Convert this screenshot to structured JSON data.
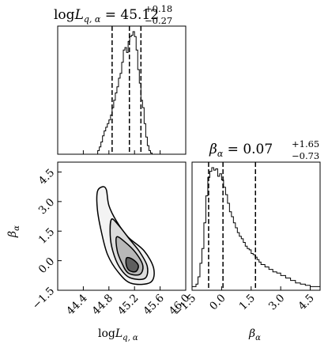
{
  "chart_data": [
    {
      "type": "histogram",
      "panel": "marginal-logL",
      "title": {
        "base": "log",
        "var": "L",
        "sub": "q, α",
        "eq": " = 45.12",
        "sup": "+0.18",
        "subscript": "−0.27"
      },
      "xlim": [
        44.0,
        46.0
      ],
      "quantiles": [
        44.85,
        45.12,
        45.3
      ],
      "bins": [
        44.6,
        44.625,
        44.65,
        44.675,
        44.7,
        44.725,
        44.75,
        44.775,
        44.8,
        44.825,
        44.85,
        44.875,
        44.9,
        44.925,
        44.95,
        44.975,
        45.0,
        45.025,
        45.05,
        45.075,
        45.1,
        45.125,
        45.15,
        45.175,
        45.2,
        45.225,
        45.25,
        45.275,
        45.3,
        45.325,
        45.35,
        45.375,
        45.4,
        45.425,
        45.45,
        45.475,
        45.5
      ],
      "counts": [
        0.0,
        0.03,
        0.06,
        0.1,
        0.15,
        0.19,
        0.22,
        0.25,
        0.28,
        0.32,
        0.38,
        0.44,
        0.5,
        0.55,
        0.62,
        0.66,
        0.75,
        0.85,
        0.87,
        0.83,
        0.92,
        0.96,
        0.97,
        1.0,
        0.96,
        0.85,
        0.69,
        0.58,
        0.44,
        0.38,
        0.25,
        0.14,
        0.07,
        0.03,
        0.01,
        0.0
      ]
    },
    {
      "type": "histogram",
      "panel": "marginal-beta",
      "title": {
        "var": "β",
        "sub": "α",
        "eq": " = 0.07",
        "sup": "+1.65",
        "subscript": "−0.73"
      },
      "xlim": [
        -1.5,
        5.0
      ],
      "xlabel": {
        "var": "β",
        "sub": "α"
      },
      "xticks": [
        "−1.5",
        "0.0",
        "1.5",
        "3.0",
        "4.5"
      ],
      "xtick_values": [
        -1.5,
        0.0,
        1.5,
        3.0,
        4.5
      ],
      "quantiles": [
        -0.66,
        0.07,
        1.72
      ],
      "bins": [
        -1.5,
        -1.4,
        -1.3,
        -1.2,
        -1.1,
        -1.0,
        -0.9,
        -0.8,
        -0.7,
        -0.6,
        -0.5,
        -0.4,
        -0.3,
        -0.2,
        -0.1,
        0.0,
        0.1,
        0.2,
        0.3,
        0.4,
        0.5,
        0.6,
        0.7,
        0.8,
        0.9,
        1.0,
        1.1,
        1.2,
        1.3,
        1.4,
        1.5,
        1.6,
        1.7,
        1.8,
        1.9,
        2.0,
        2.2,
        2.4,
        2.6,
        2.8,
        3.0,
        3.25,
        3.5,
        3.75,
        4.0,
        4.25,
        4.5,
        5.0
      ],
      "counts": [
        0.03,
        0.03,
        0.05,
        0.11,
        0.22,
        0.34,
        0.55,
        0.77,
        0.92,
        0.97,
        1.0,
        0.98,
        0.99,
        0.93,
        0.95,
        0.9,
        0.84,
        0.78,
        0.71,
        0.64,
        0.6,
        0.55,
        0.51,
        0.47,
        0.44,
        0.42,
        0.39,
        0.36,
        0.34,
        0.33,
        0.3,
        0.29,
        0.27,
        0.25,
        0.23,
        0.21,
        0.19,
        0.17,
        0.15,
        0.14,
        0.12,
        0.1,
        0.08,
        0.06,
        0.05,
        0.04,
        0.03
      ]
    },
    {
      "type": "contour",
      "panel": "joint",
      "xlim": [
        44.0,
        46.0
      ],
      "ylim": [
        -1.5,
        5.0
      ],
      "xlabel": {
        "base": "log",
        "var": "L",
        "sub": "q, α"
      },
      "ylabel": {
        "var": "β",
        "sub": "α"
      },
      "xticks": [
        "44.4",
        "44.8",
        "45.2",
        "45.6",
        "46.0"
      ],
      "xtick_values": [
        44.4,
        44.8,
        45.2,
        45.6,
        46.0
      ],
      "yticks": [
        "−1.5",
        "0.0",
        "1.5",
        "3.0",
        "4.5"
      ],
      "ytick_values": [
        -1.5,
        0.0,
        1.5,
        3.0,
        4.5
      ],
      "levels": [
        {
          "fill": "#f3f3f3",
          "points": [
            [
              44.62,
              3.5
            ],
            [
              44.7,
              3.75
            ],
            [
              44.76,
              3.6
            ],
            [
              44.8,
              2.8
            ],
            [
              44.92,
              2.0
            ],
            [
              45.1,
              1.2
            ],
            [
              45.35,
              0.5
            ],
            [
              45.5,
              -0.4
            ],
            [
              45.45,
              -1.1
            ],
            [
              45.15,
              -1.15
            ],
            [
              44.95,
              -0.6
            ],
            [
              44.78,
              0.3
            ],
            [
              44.68,
              1.5
            ],
            [
              44.62,
              2.6
            ]
          ]
        },
        {
          "fill": "#dcdcdc",
          "points": [
            [
              44.84,
              2.1
            ],
            [
              44.95,
              1.8
            ],
            [
              45.12,
              1.1
            ],
            [
              45.28,
              0.45
            ],
            [
              45.4,
              -0.3
            ],
            [
              45.36,
              -0.9
            ],
            [
              45.12,
              -0.85
            ],
            [
              44.96,
              -0.3
            ],
            [
              44.86,
              0.5
            ],
            [
              44.82,
              1.3
            ]
          ]
        },
        {
          "fill": "#b8b8b8",
          "points": [
            [
              44.92,
              1.2
            ],
            [
              45.05,
              0.95
            ],
            [
              45.22,
              0.4
            ],
            [
              45.33,
              -0.25
            ],
            [
              45.28,
              -0.7
            ],
            [
              45.1,
              -0.62
            ],
            [
              45.0,
              -0.1
            ],
            [
              44.93,
              0.5
            ]
          ]
        },
        {
          "fill": "#5f5f5f",
          "points": [
            [
              45.08,
              0.15
            ],
            [
              45.18,
              0.05
            ],
            [
              45.26,
              -0.25
            ],
            [
              45.22,
              -0.55
            ],
            [
              45.12,
              -0.5
            ],
            [
              45.07,
              -0.2
            ]
          ]
        }
      ]
    }
  ]
}
